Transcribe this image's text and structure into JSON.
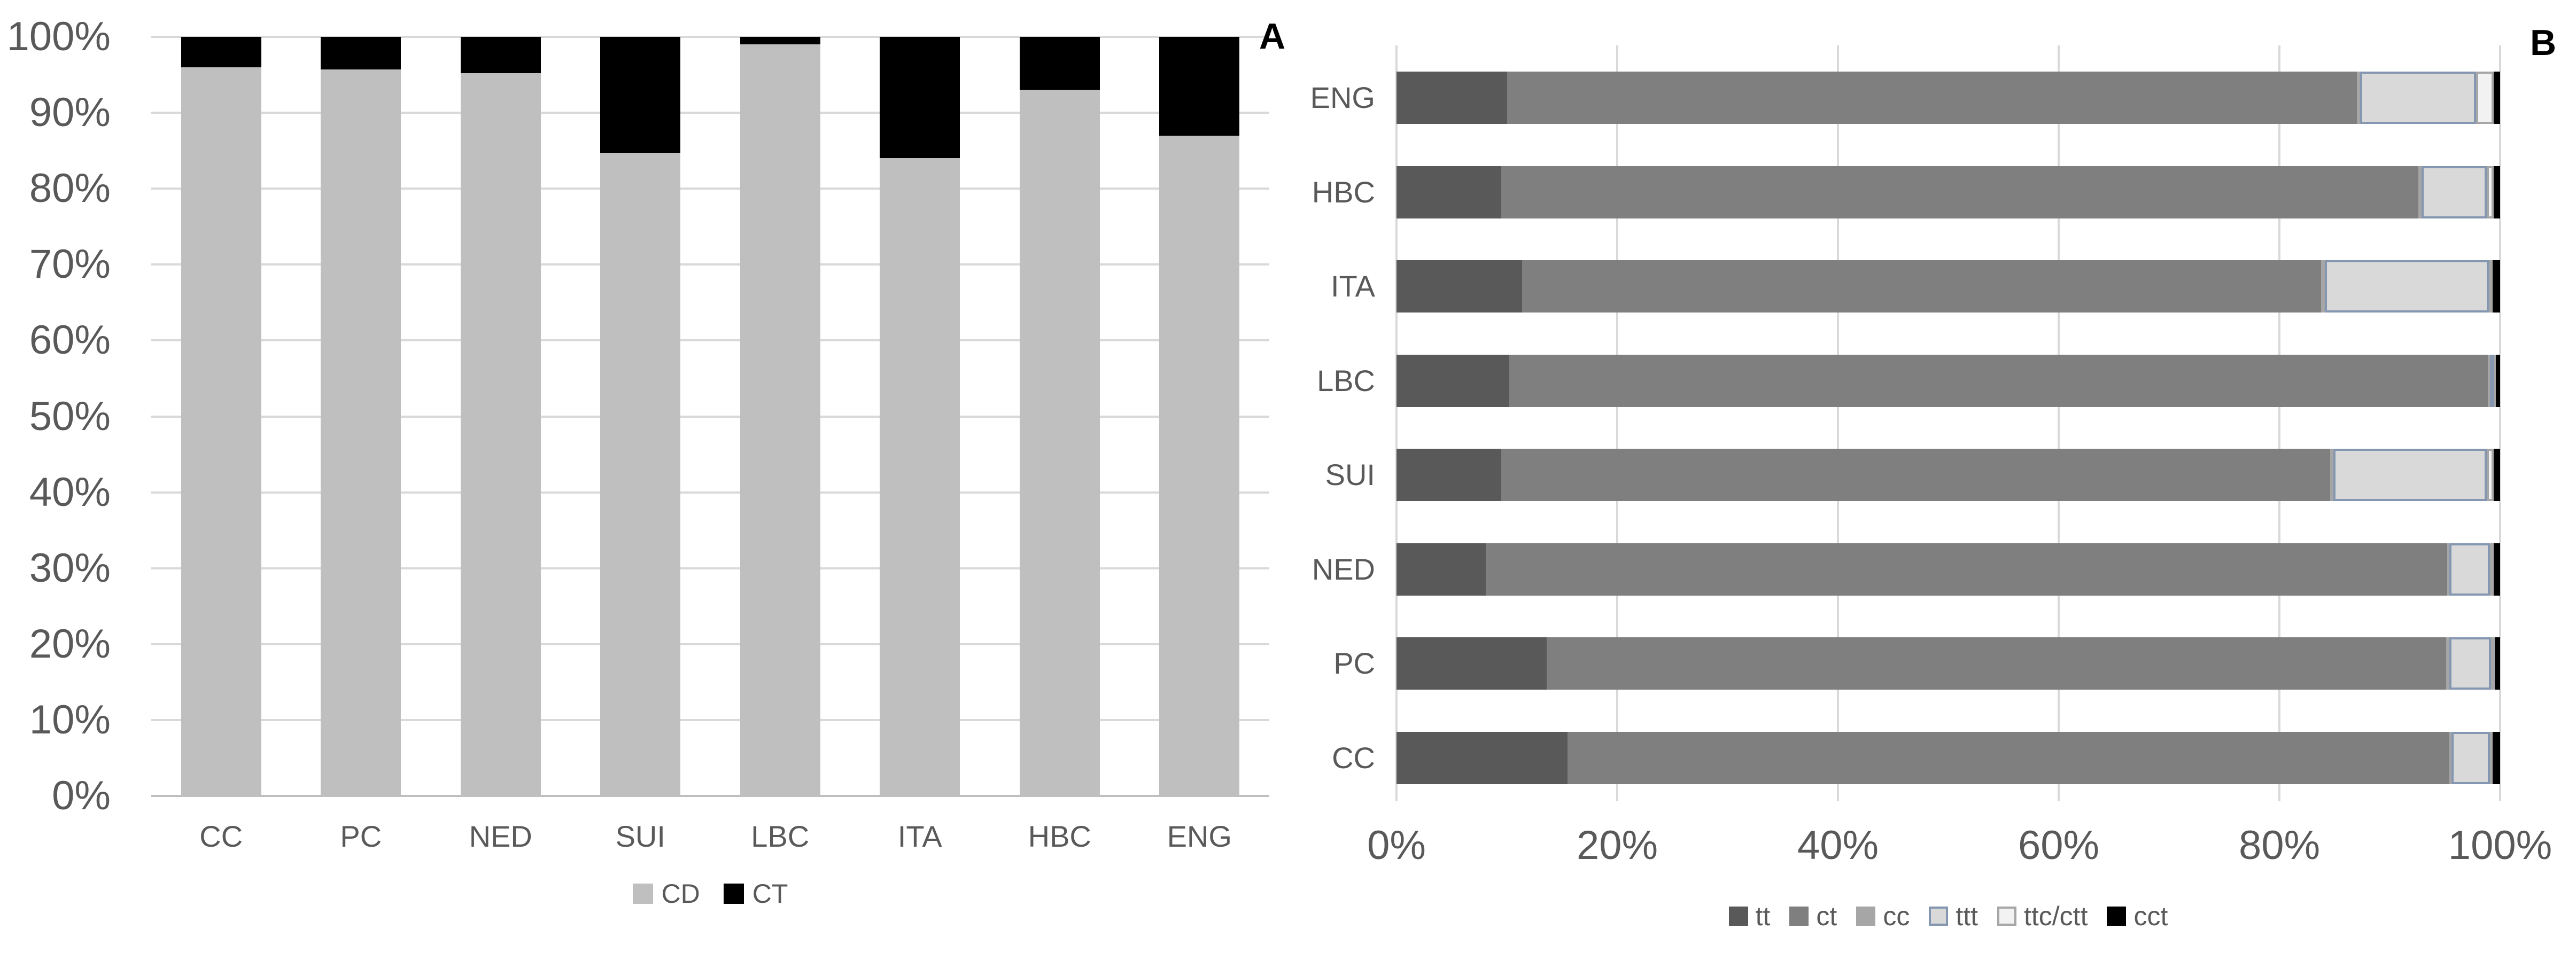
{
  "page": {
    "background": "#ffffff",
    "text_color": "#595959",
    "gridline_color": "#d9d9d9",
    "axis_line_color": "#bfbfbf"
  },
  "chart_data": [
    {
      "id": "A",
      "panel_label": "A",
      "type": "bar",
      "stacked": true,
      "orientation": "vertical",
      "unit": "percent",
      "ylim": [
        0,
        100
      ],
      "grid": true,
      "legend_position": "bottom",
      "y_ticks": [
        "100%",
        "90%",
        "80%",
        "70%",
        "60%",
        "50%",
        "40%",
        "30%",
        "20%",
        "10%",
        "0%"
      ],
      "categories": [
        "CC",
        "PC",
        "NED",
        "SUI",
        "LBC",
        "ITA",
        "HBC",
        "ENG"
      ],
      "series": [
        {
          "name": "CD",
          "color": "#bfbfbf",
          "values": [
            96,
            95.7,
            95.2,
            84.7,
            99,
            84,
            93,
            87
          ]
        },
        {
          "name": "CT",
          "color": "#000000",
          "values": [
            4,
            4.3,
            4.8,
            15.3,
            1,
            16,
            7,
            13
          ]
        }
      ]
    },
    {
      "id": "B",
      "panel_label": "B",
      "type": "bar",
      "stacked": true,
      "orientation": "horizontal",
      "unit": "percent",
      "xlim": [
        0,
        100
      ],
      "grid": true,
      "legend_position": "bottom",
      "x_ticks": [
        "0%",
        "20%",
        "40%",
        "60%",
        "80%",
        "100%"
      ],
      "categories": [
        "ENG",
        "HBC",
        "ITA",
        "LBC",
        "SUI",
        "NED",
        "PC",
        "CC"
      ],
      "series": [
        {
          "name": "tt",
          "color": "#595959",
          "values": [
            10,
            9.5,
            11.4,
            10.2,
            9.5,
            8.1,
            13.6,
            15.5
          ]
        },
        {
          "name": "ct",
          "color": "#7f7f7f",
          "values": [
            77,
            83.1,
            72.4,
            88.7,
            75.1,
            87.1,
            81.5,
            79.9
          ]
        },
        {
          "name": "cc",
          "color": "#a6a6a6",
          "values": [
            0.3,
            0.3,
            0.3,
            0.2,
            0.3,
            0.2,
            0.3,
            0.2
          ]
        },
        {
          "name": "ttt",
          "color": "#d9d9d9",
          "border": "#8496b0",
          "values": [
            10.5,
            5.9,
            14.9,
            0.3,
            13.9,
            3.7,
            3.8,
            3.5
          ]
        },
        {
          "name": "ttc/ctt",
          "color": "#f2f2f2",
          "border": "#a6a6a6",
          "values": [
            1.6,
            0.6,
            0.3,
            0.2,
            0.6,
            0.3,
            0.3,
            0.2
          ]
        },
        {
          "name": "cct",
          "color": "#000000",
          "values": [
            0.6,
            0.6,
            0.7,
            0.4,
            0.6,
            0.6,
            0.5,
            0.7
          ]
        }
      ]
    }
  ]
}
